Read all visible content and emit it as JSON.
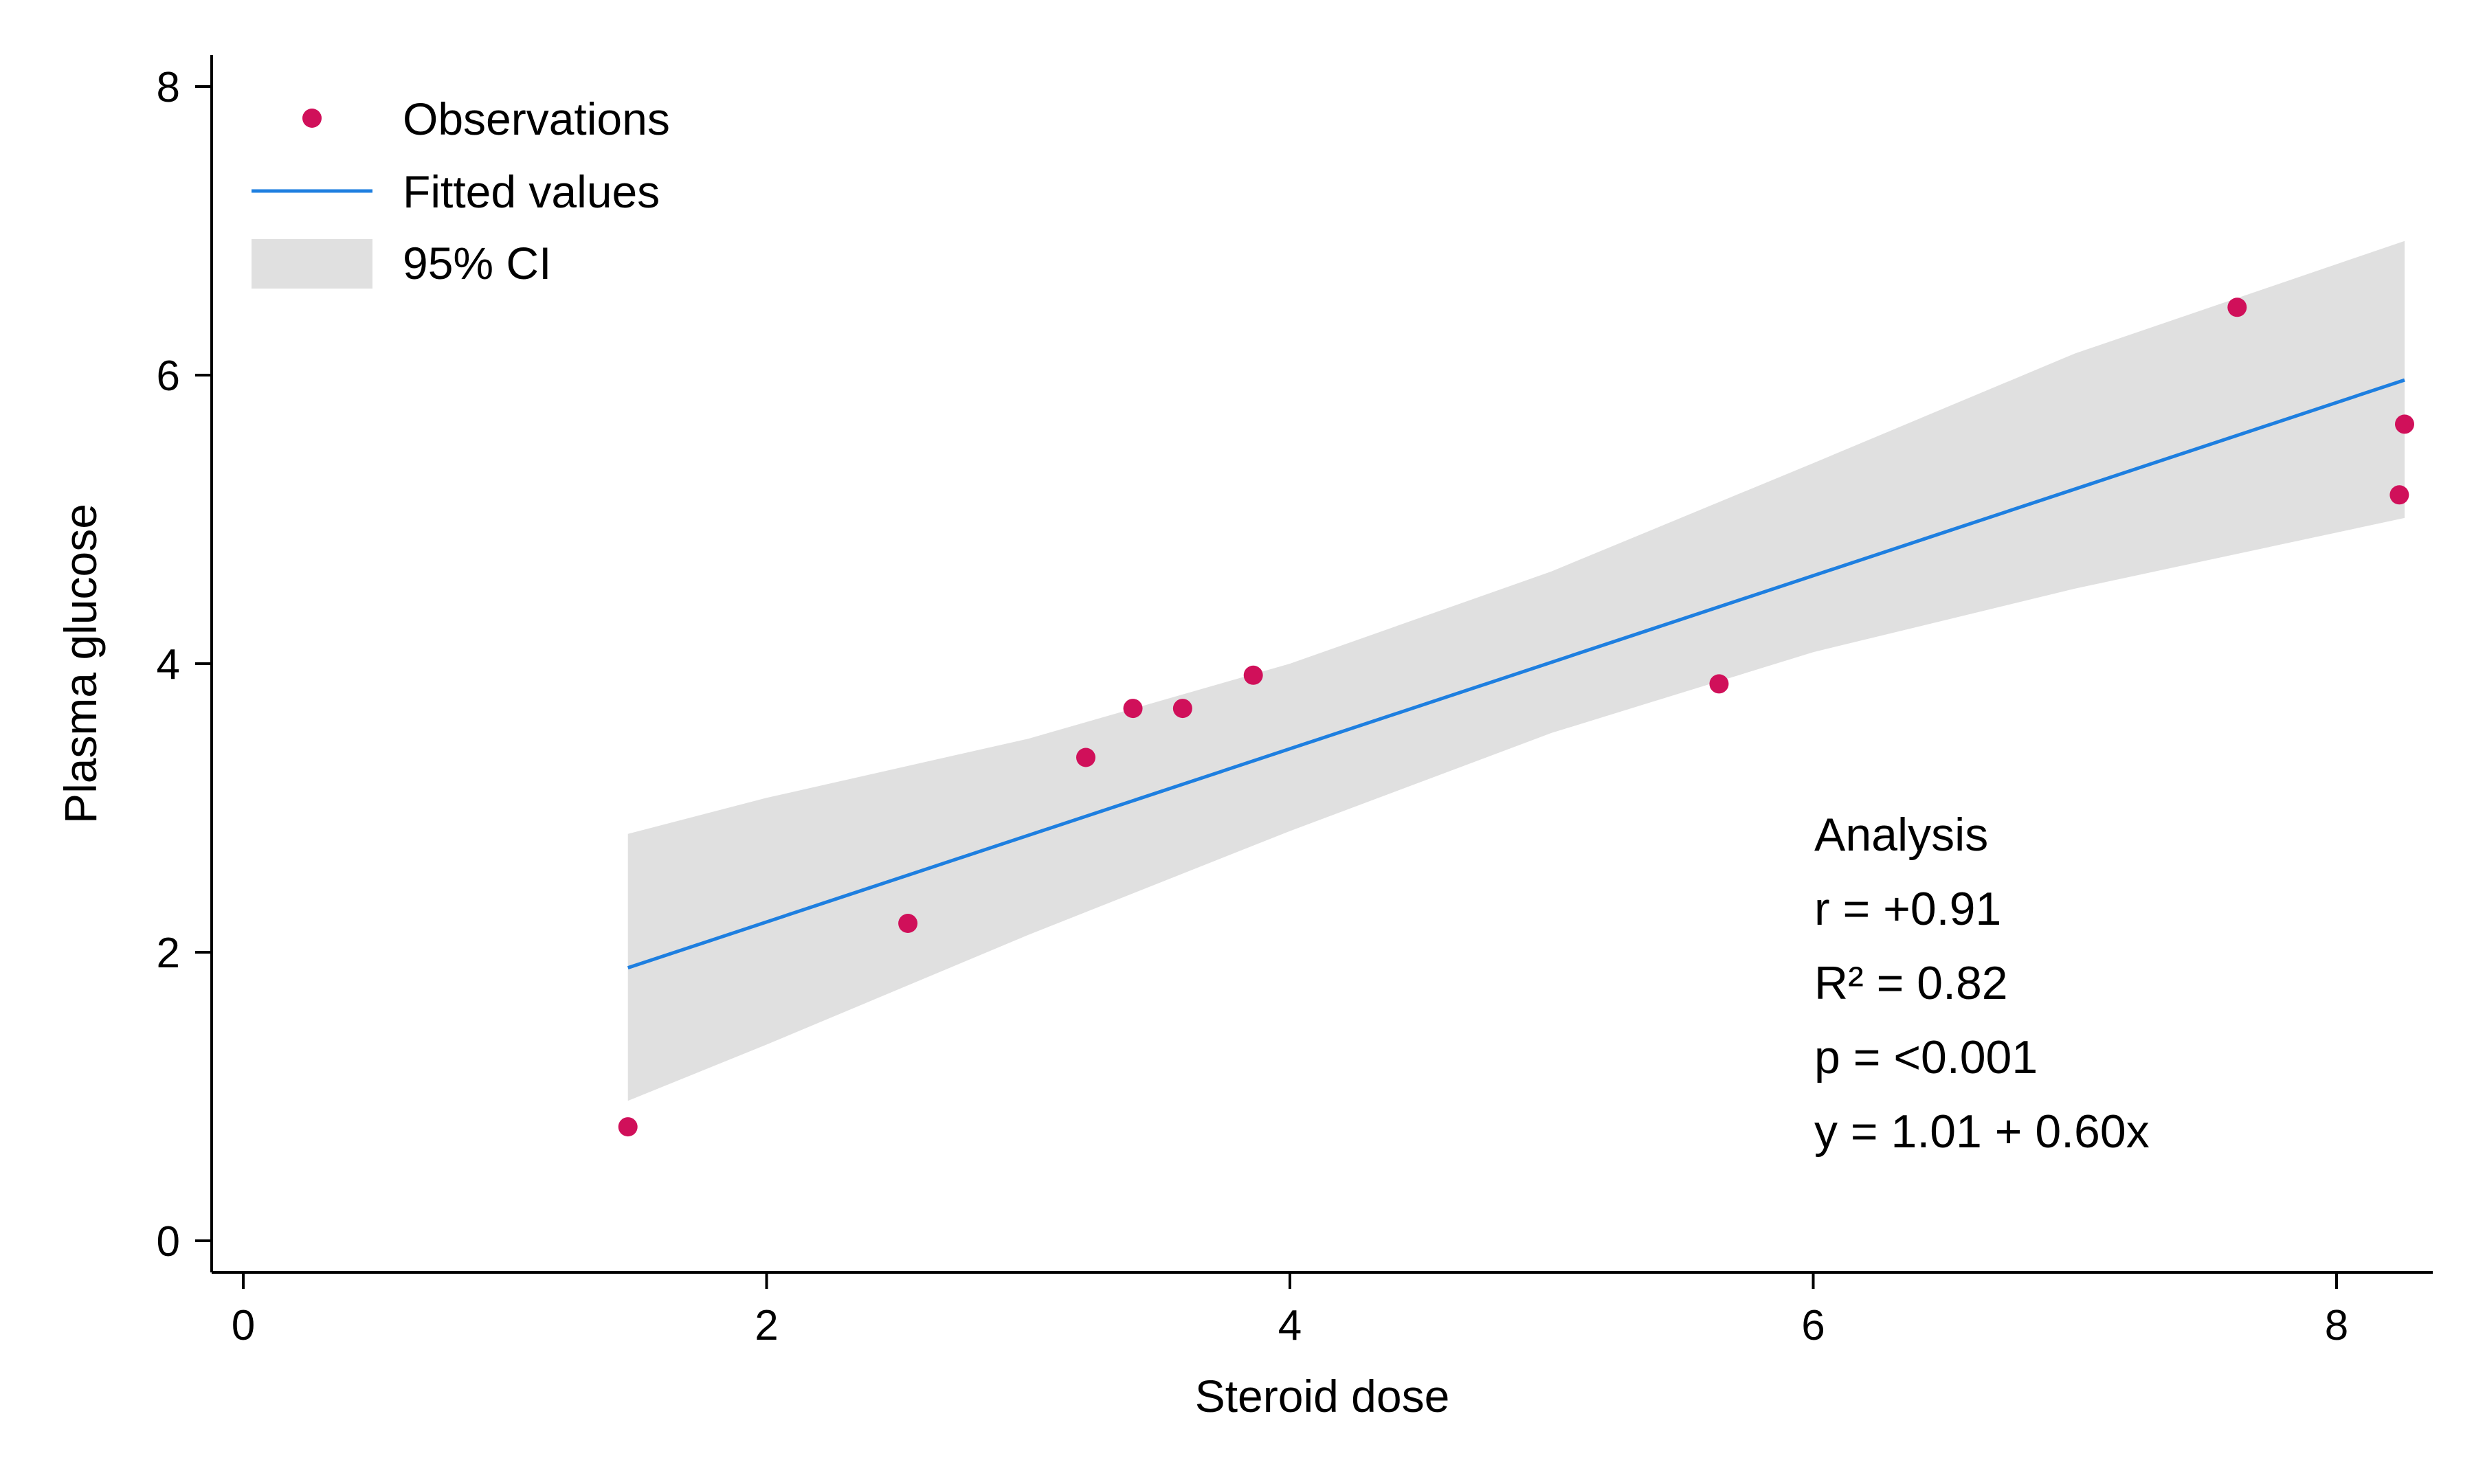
{
  "chart_data": {
    "type": "scatter",
    "title": "",
    "xlabel": "Steroid dose",
    "ylabel": "Plasma glucose",
    "xlim": [
      -0.3,
      8.5
    ],
    "ylim": [
      -0.2,
      8.2
    ],
    "x_ticks": [
      0,
      2,
      4,
      6,
      8
    ],
    "y_ticks": [
      0,
      2,
      4,
      6,
      8
    ],
    "grid": false,
    "legend": {
      "position": "top-left",
      "entries": [
        {
          "label": "Observations",
          "type": "marker",
          "color": "#d0105a"
        },
        {
          "label": "Fitted values",
          "type": "line",
          "color": "#1e7fe0"
        },
        {
          "label": "95% CI",
          "type": "band",
          "color": "#e0e0e0"
        }
      ]
    },
    "series": [
      {
        "name": "Observations",
        "type": "scatter",
        "color": "#d0105a",
        "points": [
          {
            "x": 1.47,
            "y": 0.79
          },
          {
            "x": 2.54,
            "y": 2.2
          },
          {
            "x": 3.22,
            "y": 3.35
          },
          {
            "x": 3.4,
            "y": 3.69
          },
          {
            "x": 3.59,
            "y": 3.69
          },
          {
            "x": 3.86,
            "y": 3.92
          },
          {
            "x": 5.64,
            "y": 3.86
          },
          {
            "x": 7.62,
            "y": 6.47
          },
          {
            "x": 8.24,
            "y": 5.17
          },
          {
            "x": 8.26,
            "y": 5.66
          }
        ]
      },
      {
        "name": "Fitted values",
        "type": "line",
        "color": "#1e7fe0",
        "intercept": 1.01,
        "slope": 0.6,
        "x_range": [
          1.47,
          8.26
        ]
      },
      {
        "name": "95% CI",
        "type": "band",
        "color": "#e0e0e0",
        "x": [
          1.47,
          2.0,
          3.0,
          4.0,
          5.0,
          6.0,
          7.0,
          8.26
        ],
        "lower": [
          0.97,
          1.36,
          2.12,
          2.84,
          3.52,
          4.08,
          4.52,
          5.01
        ],
        "upper": [
          2.82,
          3.07,
          3.48,
          4.0,
          4.64,
          5.39,
          6.15,
          6.93
        ]
      }
    ],
    "annotations": [
      "Analysis",
      "r = +0.91",
      "R² = 0.82",
      "p = <0.001",
      "y = 1.01 + 0.60x"
    ]
  }
}
